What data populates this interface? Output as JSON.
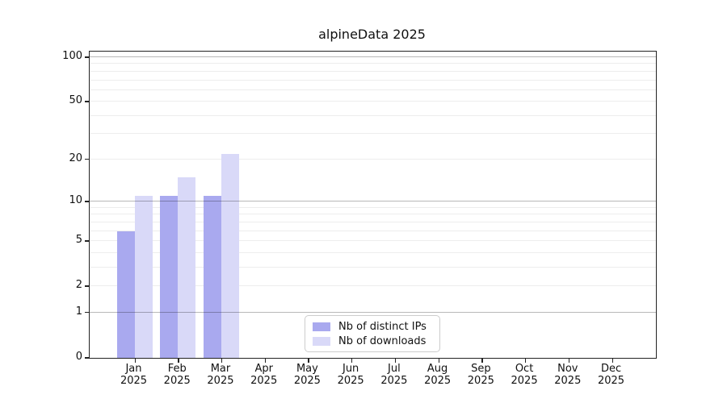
{
  "chart_data": {
    "type": "bar",
    "title": "alpineData 2025",
    "scale": "log1p",
    "categories": [
      "Jan",
      "Feb",
      "Mar",
      "Apr",
      "May",
      "Jun",
      "Jul",
      "Aug",
      "Sep",
      "Oct",
      "Nov",
      "Dec"
    ],
    "x_sublabel": "2025",
    "series": [
      {
        "name": "Nb of distinct IPs",
        "color": "#a9a9ef",
        "values": [
          6,
          11,
          11,
          0,
          0,
          0,
          0,
          0,
          0,
          0,
          0,
          0
        ]
      },
      {
        "name": "Nb of downloads",
        "color": "#d9d9f8",
        "values": [
          11,
          15,
          22,
          0,
          0,
          0,
          0,
          0,
          0,
          0,
          0,
          0
        ]
      }
    ],
    "y_ticks": [
      0,
      1,
      2,
      5,
      10,
      20,
      50,
      100
    ],
    "y_gridlines_major": [
      1,
      10,
      100
    ],
    "y_gridlines_minor": [
      2,
      3,
      4,
      5,
      6,
      7,
      8,
      9,
      20,
      30,
      40,
      50,
      60,
      70,
      80,
      90
    ],
    "ylim": [
      0,
      109
    ],
    "grid": true,
    "legend_position": "bottom-center"
  },
  "colors": {
    "grid_major": "rgba(0,0,0,0.28)",
    "grid_minor": "#ededed",
    "spine": "#222222",
    "text": "#111111",
    "background": "#ffffff",
    "legend_border": "#cccccc"
  }
}
